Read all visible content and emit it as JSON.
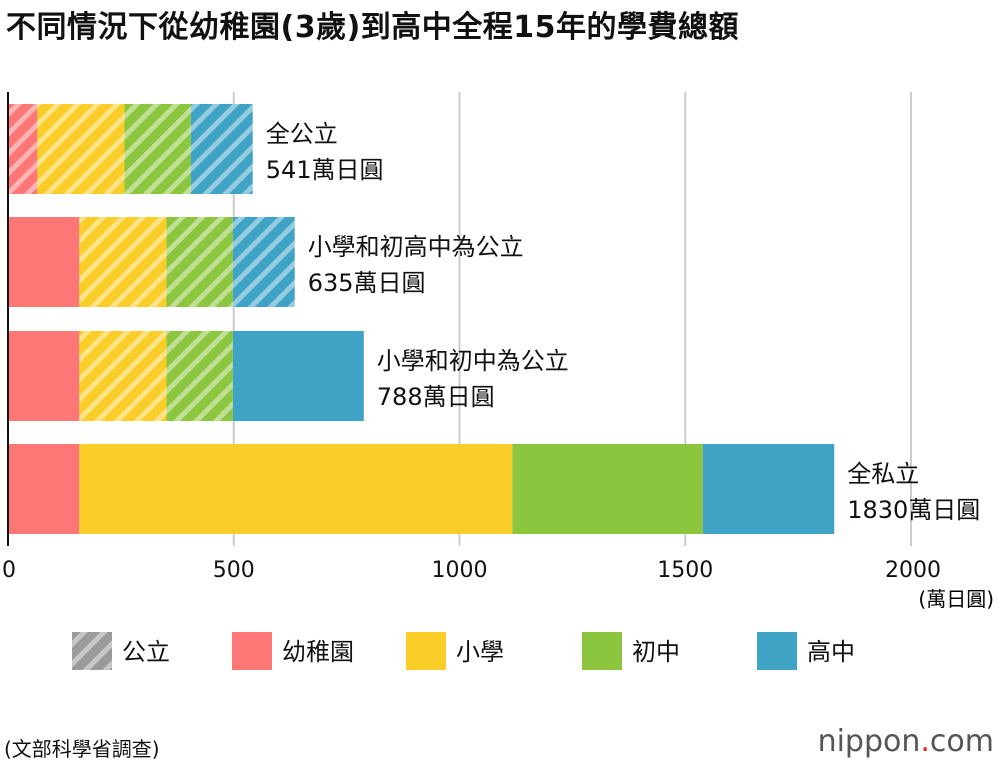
{
  "title": "不同情況下從幼稚園(3歲)到高中全程15年的學費總額",
  "source": "(文部科學省調查)",
  "brand": {
    "pre": "nippon",
    "dot": ".",
    "post": "com"
  },
  "chart_data": {
    "type": "bar",
    "orientation": "horizontal",
    "stacked": true,
    "title": "不同情況下從幼稚園(3歲)到高中全程15年的學費總額",
    "xlabel": "(萬日圓)",
    "xlim": [
      0,
      2000
    ],
    "xticks": [
      0,
      500,
      1000,
      1500,
      2000
    ],
    "grid": true,
    "legend_position": "bottom",
    "categories": [
      "全公立",
      "小學和初高中為公立",
      "小學和初中為公立",
      "全私立"
    ],
    "totals": [
      "541萬日圓",
      "635萬日圓",
      "788萬日圓",
      "1830萬日圓"
    ],
    "series": [
      {
        "name": "幼稚園",
        "color": "#fd7777",
        "values": [
          65,
          158,
          158,
          158
        ],
        "public": [
          true,
          false,
          false,
          false
        ]
      },
      {
        "name": "小學",
        "color": "#fbcd28",
        "values": [
          193,
          193,
          193,
          959
        ],
        "public": [
          true,
          true,
          true,
          false
        ]
      },
      {
        "name": "初中",
        "color": "#8cc63f",
        "values": [
          147,
          147,
          147,
          422
        ],
        "public": [
          true,
          true,
          true,
          false
        ]
      },
      {
        "name": "高中",
        "color": "#3fa3c6",
        "values": [
          137,
          137,
          290,
          291
        ],
        "public": [
          true,
          true,
          false,
          false
        ]
      }
    ],
    "hatch_legend": "公立",
    "hatch_color": "#9a9a9a"
  }
}
